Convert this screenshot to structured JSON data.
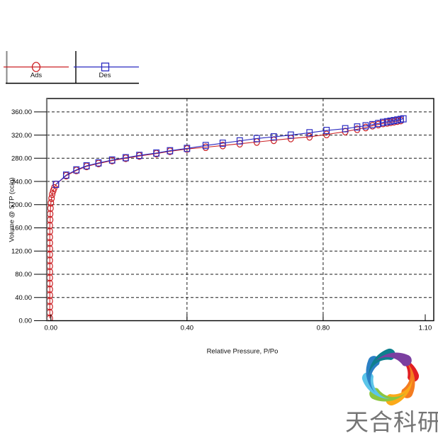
{
  "chart_data": {
    "type": "line",
    "title": "",
    "xlabel": "Relative Pressure, P/Po",
    "ylabel": "Volume @ STP (cc/g)",
    "xlim": [
      -0.012,
      1.125
    ],
    "ylim": [
      0,
      383
    ],
    "x_ticks": [
      0.0,
      0.4,
      0.8,
      1.1
    ],
    "x_tick_labels": [
      "0.00",
      "0.40",
      "0.80",
      "1.10"
    ],
    "y_ticks": [
      0,
      40,
      80,
      120,
      160,
      200,
      240,
      280,
      320,
      360
    ],
    "y_tick_labels": [
      "0.00",
      "40.00",
      "80.00",
      "120.00",
      "160.00",
      "200.00",
      "240.00",
      "280.00",
      "320.00",
      "360.00"
    ],
    "grid": "dashed",
    "legend_position": "top-left-outside",
    "series": [
      {
        "name": "Ads",
        "marker": "circle",
        "color": "#cc2125",
        "points": [
          [
            -0.003,
            4
          ],
          [
            -0.003,
            14
          ],
          [
            -0.003,
            24
          ],
          [
            -0.003,
            34
          ],
          [
            -0.003,
            44
          ],
          [
            -0.003,
            54
          ],
          [
            -0.003,
            64
          ],
          [
            -0.003,
            74
          ],
          [
            -0.003,
            84
          ],
          [
            -0.003,
            94
          ],
          [
            -0.003,
            104
          ],
          [
            -0.003,
            114
          ],
          [
            -0.003,
            124
          ],
          [
            -0.003,
            134
          ],
          [
            -0.003,
            144
          ],
          [
            -0.003,
            154
          ],
          [
            -0.003,
            164
          ],
          [
            -0.002,
            174
          ],
          [
            -0.002,
            184
          ],
          [
            -0.001,
            194
          ],
          [
            0.0,
            203
          ],
          [
            0.002,
            211
          ],
          [
            0.004,
            218
          ],
          [
            0.007,
            224
          ],
          [
            0.01,
            229
          ],
          [
            0.015,
            235
          ],
          [
            0.045,
            250
          ],
          [
            0.075,
            259
          ],
          [
            0.105,
            266
          ],
          [
            0.14,
            271
          ],
          [
            0.18,
            276
          ],
          [
            0.22,
            280
          ],
          [
            0.26,
            284
          ],
          [
            0.31,
            288
          ],
          [
            0.35,
            292
          ],
          [
            0.4,
            296
          ],
          [
            0.455,
            299
          ],
          [
            0.505,
            302
          ],
          [
            0.555,
            305
          ],
          [
            0.605,
            308
          ],
          [
            0.655,
            311
          ],
          [
            0.705,
            314
          ],
          [
            0.76,
            317
          ],
          [
            0.81,
            321
          ],
          [
            0.865,
            326
          ],
          [
            0.9,
            330
          ],
          [
            0.925,
            333
          ],
          [
            0.945,
            336
          ],
          [
            0.962,
            338
          ],
          [
            0.976,
            340
          ],
          [
            0.988,
            341
          ],
          [
            0.998,
            342
          ],
          [
            1.008,
            343
          ],
          [
            1.018,
            344
          ],
          [
            1.028,
            345
          ]
        ]
      },
      {
        "name": "Des",
        "marker": "square",
        "color": "#2a2ac0",
        "points": [
          [
            0.015,
            235
          ],
          [
            0.045,
            251
          ],
          [
            0.075,
            260
          ],
          [
            0.105,
            267
          ],
          [
            0.14,
            272
          ],
          [
            0.18,
            277
          ],
          [
            0.22,
            281
          ],
          [
            0.26,
            285
          ],
          [
            0.31,
            289
          ],
          [
            0.35,
            293
          ],
          [
            0.4,
            297
          ],
          [
            0.455,
            302
          ],
          [
            0.505,
            306
          ],
          [
            0.555,
            310
          ],
          [
            0.605,
            314
          ],
          [
            0.655,
            317
          ],
          [
            0.705,
            320
          ],
          [
            0.76,
            324
          ],
          [
            0.81,
            328
          ],
          [
            0.865,
            331
          ],
          [
            0.9,
            334
          ],
          [
            0.925,
            336
          ],
          [
            0.945,
            338
          ],
          [
            0.962,
            340
          ],
          [
            0.976,
            342
          ],
          [
            0.988,
            343
          ],
          [
            0.998,
            344
          ],
          [
            1.008,
            345
          ],
          [
            1.018,
            346
          ],
          [
            1.028,
            347
          ],
          [
            1.036,
            348
          ]
        ]
      }
    ]
  },
  "legend": {
    "items": [
      {
        "label": "Ads",
        "marker": "circle",
        "color": "#cc2125"
      },
      {
        "label": "Des",
        "marker": "square",
        "color": "#2a2ac0"
      }
    ]
  },
  "watermark": {
    "text": "天合科研",
    "text_color": "#757575",
    "swirl_colors": [
      "#e21e22",
      "#f47c20",
      "#fbaa19",
      "#8cc63f",
      "#5bc5e9",
      "#2b80c5",
      "#0e7f8e",
      "#7b3fa0"
    ]
  },
  "colors": {
    "grid": "#1a1a1a",
    "border": "#000000",
    "y_axis": "#7a7a7a",
    "background": "#ffffff"
  }
}
